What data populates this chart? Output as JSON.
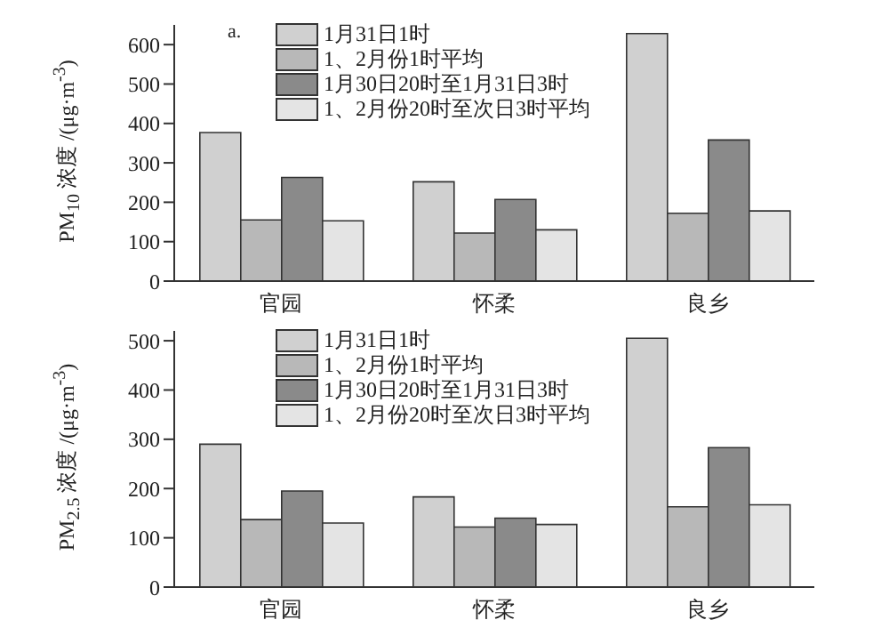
{
  "chart_data": [
    {
      "type": "bar",
      "annotations": [
        "a."
      ],
      "ylabel": "PM$_{10}$ 浓度 /(μg·m$^{-3}$)",
      "categories": [
        "官园",
        "怀柔",
        "良乡"
      ],
      "ylim": [
        0,
        650
      ],
      "yticks": [
        0,
        100,
        200,
        300,
        400,
        500,
        600
      ],
      "legend": "top",
      "series": [
        {
          "name": "1月31日1时",
          "color": "#d0d0d0",
          "values": [
            377,
            252,
            628
          ]
        },
        {
          "name": "1、2月份1时平均",
          "color": "#b8b8b8",
          "values": [
            155,
            122,
            172
          ]
        },
        {
          "name": "1月30日20时至1月31日3时",
          "color": "#8a8a8a",
          "values": [
            263,
            207,
            358
          ]
        },
        {
          "name": "1、2月份20时至次日3时平均",
          "color": "#e4e4e4",
          "values": [
            153,
            130,
            178
          ]
        }
      ]
    },
    {
      "type": "bar",
      "ylabel": "PM$_{2.5}$ 浓度 /(μg·m$^{-3}$)",
      "categories": [
        "官园",
        "怀柔",
        "良乡"
      ],
      "ylim": [
        0,
        520
      ],
      "yticks": [
        0,
        100,
        200,
        300,
        400,
        500
      ],
      "legend": "top",
      "series": [
        {
          "name": "1月31日1时",
          "color": "#d0d0d0",
          "values": [
            290,
            183,
            505
          ]
        },
        {
          "name": "1、2月份1时平均",
          "color": "#b8b8b8",
          "values": [
            137,
            122,
            163
          ]
        },
        {
          "name": "1月30日20时至1月31日3时",
          "color": "#8a8a8a",
          "values": [
            195,
            140,
            283
          ]
        },
        {
          "name": "1、2月份20时至次日3时平均",
          "color": "#e4e4e4",
          "values": [
            130,
            127,
            167
          ]
        }
      ]
    }
  ]
}
